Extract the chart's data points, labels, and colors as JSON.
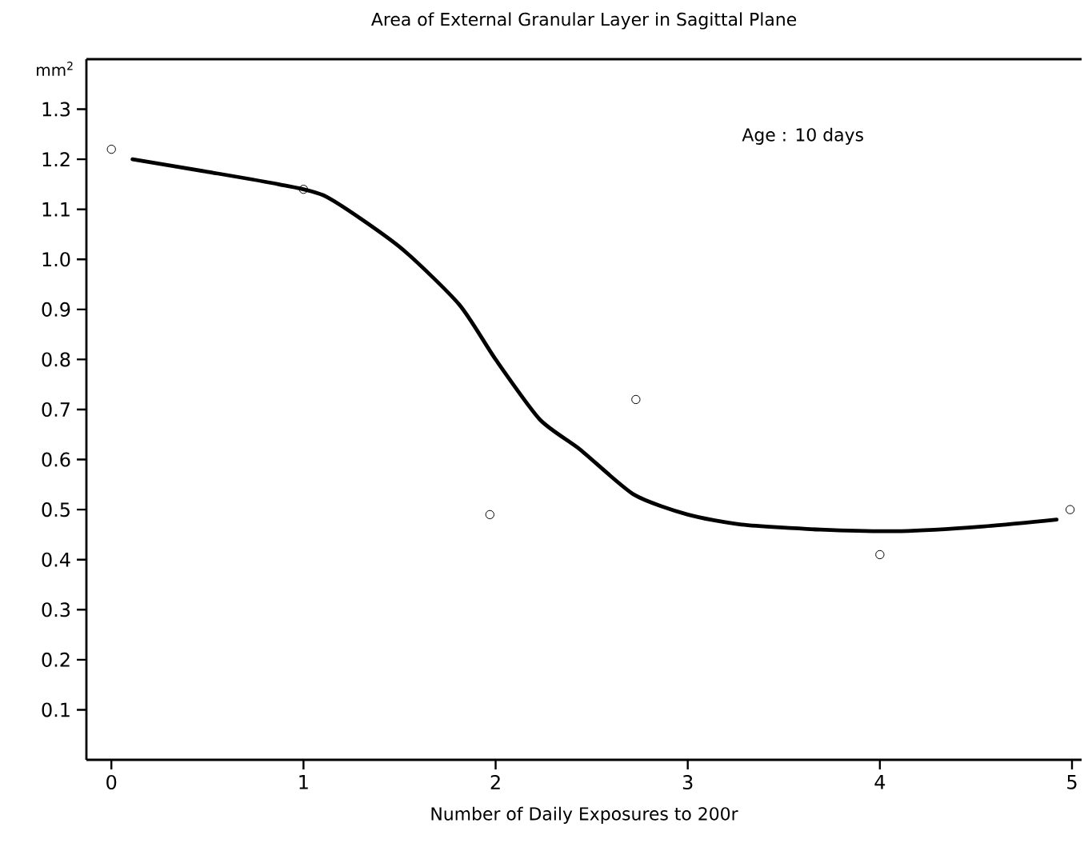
{
  "chart_data": {
    "type": "scatter",
    "title": "Area of External Granular Layer in Sagittal Plane",
    "xlabel": "Number of Daily Exposures to 200r",
    "ylabel": "mm$^{2}$",
    "annotations": [
      "Age : 10 days"
    ],
    "xlim": [
      -0.13,
      5.05
    ],
    "ylim": [
      0,
      1.4
    ],
    "xticks": [
      0,
      1,
      2,
      3,
      4,
      5
    ],
    "yticks": [
      0.1,
      0.2,
      0.3,
      0.4,
      0.5,
      0.6,
      0.7,
      0.8,
      0.9,
      {
        "value": 1,
        "label": "1.0"
      },
      1.1,
      1.2,
      1.3
    ],
    "series": [
      {
        "marker": "circle",
        "color": "#000000",
        "x": [
          0,
          1,
          1.97,
          2.73,
          4,
          4.99
        ],
        "values": [
          1.22,
          1.14,
          0.49,
          0.72,
          0.41,
          0.5
        ]
      },
      {
        "type": "line",
        "marker": "none",
        "line_style": "solid",
        "color": "#000000",
        "x": [
          0.11,
          0.5,
          0.87,
          1.12,
          1.5,
          1.81,
          2.0,
          2.23,
          2.44,
          2.72,
          3.0,
          3.28,
          3.69,
          4.11,
          4.53,
          4.92
        ],
        "values": [
          1.2,
          1.175,
          1.15,
          1.125,
          1.025,
          0.91,
          0.8,
          0.68,
          0.62,
          0.53,
          0.49,
          0.47,
          0.46,
          0.457,
          0.466,
          0.48
        ]
      }
    ]
  }
}
